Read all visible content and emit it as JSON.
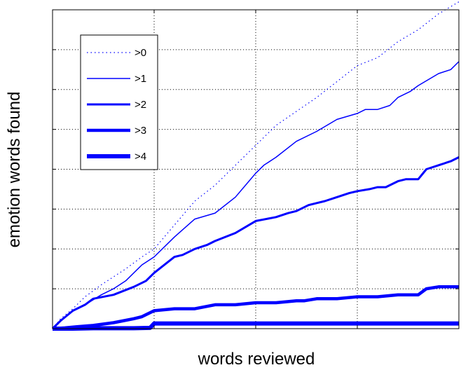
{
  "chart_data": {
    "type": "line",
    "title": "",
    "xlabel": "words reviewed",
    "ylabel": "emotion words found",
    "xlim": [
      0,
      100
    ],
    "ylim": [
      0,
      80
    ],
    "xticks": [
      25,
      50,
      75
    ],
    "yticks": [
      10,
      20,
      30,
      40,
      50,
      60,
      70
    ],
    "x_tick_labels_shown": false,
    "y_tick_labels_shown": false,
    "grid": true,
    "legend_position": "top-left",
    "color": "#0000ff",
    "series": [
      {
        "name": ">0",
        "style": "dotted",
        "x": [
          0,
          2,
          5,
          8,
          12,
          18,
          22,
          25,
          30,
          35,
          40,
          45,
          50,
          55,
          60,
          65,
          70,
          75,
          80,
          85,
          90,
          95,
          100
        ],
        "y": [
          0,
          2.5,
          5,
          8,
          11,
          15,
          18,
          20,
          26,
          32,
          36,
          41,
          46,
          51,
          54.5,
          58,
          62,
          66,
          68,
          72,
          75,
          79,
          82
        ]
      },
      {
        "name": ">1",
        "style": "solid-1",
        "x": [
          0,
          2,
          5,
          8,
          12,
          15,
          18,
          22,
          25,
          30,
          35,
          40,
          45,
          50,
          52,
          55,
          60,
          65,
          70,
          75,
          77,
          80,
          83,
          85,
          88,
          90,
          95,
          98,
          100
        ],
        "y": [
          0,
          2,
          4.5,
          6,
          8.5,
          10,
          12,
          16,
          18,
          23,
          27.5,
          29,
          33,
          39,
          41,
          43,
          47,
          49.5,
          52.5,
          54,
          55,
          55,
          56,
          58,
          59.5,
          61,
          64,
          65,
          67
        ]
      },
      {
        "name": ">2",
        "style": "solid-2",
        "x": [
          0,
          2,
          5,
          8,
          10,
          15,
          20,
          23,
          25,
          30,
          32,
          35,
          38,
          40,
          45,
          50,
          55,
          58,
          60,
          63,
          65,
          67,
          70,
          73,
          75,
          78,
          80,
          82,
          85,
          87,
          90,
          92,
          95,
          98,
          100
        ],
        "y": [
          0,
          2,
          4.5,
          6,
          7.5,
          8.5,
          10.5,
          12,
          14,
          18,
          18.5,
          20,
          21,
          22,
          24,
          27,
          28,
          29,
          29.5,
          31,
          31.5,
          32,
          33,
          34,
          34.5,
          35,
          35.5,
          35.5,
          37,
          37.5,
          37.5,
          40,
          41,
          42,
          43
        ]
      },
      {
        "name": ">3",
        "style": "solid-3",
        "x": [
          0,
          3,
          6,
          10,
          15,
          20,
          22,
          25,
          30,
          35,
          40,
          45,
          50,
          55,
          60,
          62,
          65,
          70,
          75,
          80,
          85,
          90,
          92,
          95,
          100
        ],
        "y": [
          0,
          0.2,
          0.5,
          0.8,
          1.5,
          2.5,
          3,
          4.5,
          5,
          5,
          6,
          6,
          6.5,
          6.5,
          7,
          7,
          7.5,
          7.5,
          8,
          8,
          8.5,
          8.5,
          10,
          10.5,
          10.5
        ]
      },
      {
        "name": ">4",
        "style": "solid-4",
        "x": [
          0,
          5,
          10,
          15,
          20,
          24,
          25,
          100
        ],
        "y": [
          0,
          0,
          0.1,
          0.1,
          0.1,
          0.2,
          1.3,
          1.3
        ]
      }
    ]
  }
}
